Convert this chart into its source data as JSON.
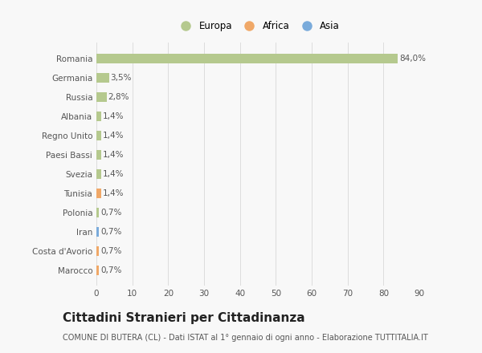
{
  "countries": [
    "Romania",
    "Germania",
    "Russia",
    "Albania",
    "Regno Unito",
    "Paesi Bassi",
    "Svezia",
    "Tunisia",
    "Polonia",
    "Iran",
    "Costa d'Avorio",
    "Marocco"
  ],
  "values": [
    84.0,
    3.5,
    2.8,
    1.4,
    1.4,
    1.4,
    1.4,
    1.4,
    0.7,
    0.7,
    0.7,
    0.7
  ],
  "labels": [
    "84,0%",
    "3,5%",
    "2,8%",
    "1,4%",
    "1,4%",
    "1,4%",
    "1,4%",
    "1,4%",
    "0,7%",
    "0,7%",
    "0,7%",
    "0,7%"
  ],
  "continents": [
    "Europa",
    "Europa",
    "Europa",
    "Europa",
    "Europa",
    "Europa",
    "Europa",
    "Africa",
    "Europa",
    "Asia",
    "Africa",
    "Africa"
  ],
  "colors": {
    "Europa": "#b5c98e",
    "Africa": "#f0a868",
    "Asia": "#7aabdb"
  },
  "xlim": [
    0,
    90
  ],
  "xticks": [
    0,
    10,
    20,
    30,
    40,
    50,
    60,
    70,
    80,
    90
  ],
  "title": "Cittadini Stranieri per Cittadinanza",
  "subtitle": "COMUNE DI BUTERA (CL) - Dati ISTAT al 1° gennaio di ogni anno - Elaborazione TUTTITALIA.IT",
  "background_color": "#f8f8f8",
  "grid_color": "#dddddd",
  "bar_height": 0.5,
  "label_fontsize": 7.5,
  "tick_fontsize": 7.5,
  "title_fontsize": 11,
  "subtitle_fontsize": 7
}
